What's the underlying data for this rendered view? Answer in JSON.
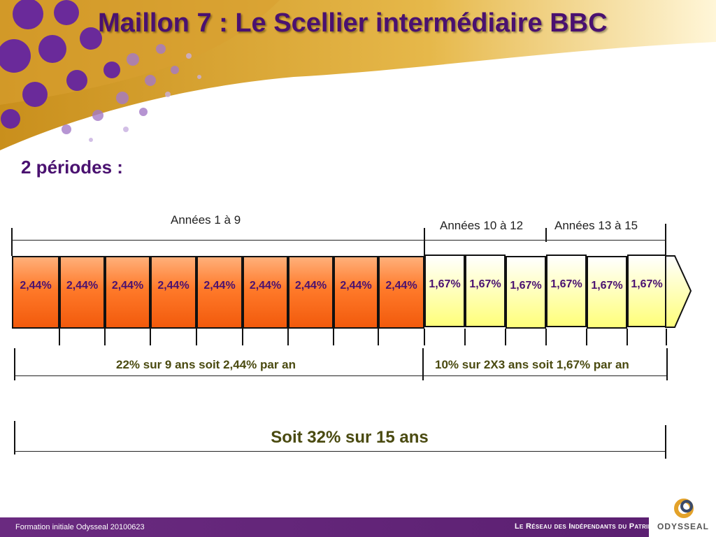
{
  "title": "Maillon 7 : Le Scellier intermédiaire BBC",
  "subtitle": "2 périodes :",
  "periods": {
    "p1": "Années 1 à 9",
    "p2": "Années 10 à 12",
    "p3": "Années 13 à 15"
  },
  "rates": {
    "first": [
      "2,44%",
      "2,44%",
      "2,44%",
      "2,44%",
      "2,44%",
      "2,44%",
      "2,44%",
      "2,44%",
      "2,44%"
    ],
    "second": [
      "1,67%",
      "1,67%",
      "1,67%",
      "1,67%",
      "1,67%",
      "1,67%"
    ]
  },
  "summary": {
    "left": "22% sur 9 ans soit 2,44% par an",
    "right": "10% sur 2X3 ans soit 1,67% par an",
    "total": "Soit 32% sur 15 ans"
  },
  "footer": {
    "text": "Formation initiale Odysseal 20100623",
    "tagline": "Le Réseau des Indépendants du Patrimoine",
    "brand": "ODYSSEAL"
  },
  "colors": {
    "title": "#4a1170",
    "orange": "#f25a0c",
    "yellow": "#ffff7a",
    "footer": "#6a2a80"
  }
}
